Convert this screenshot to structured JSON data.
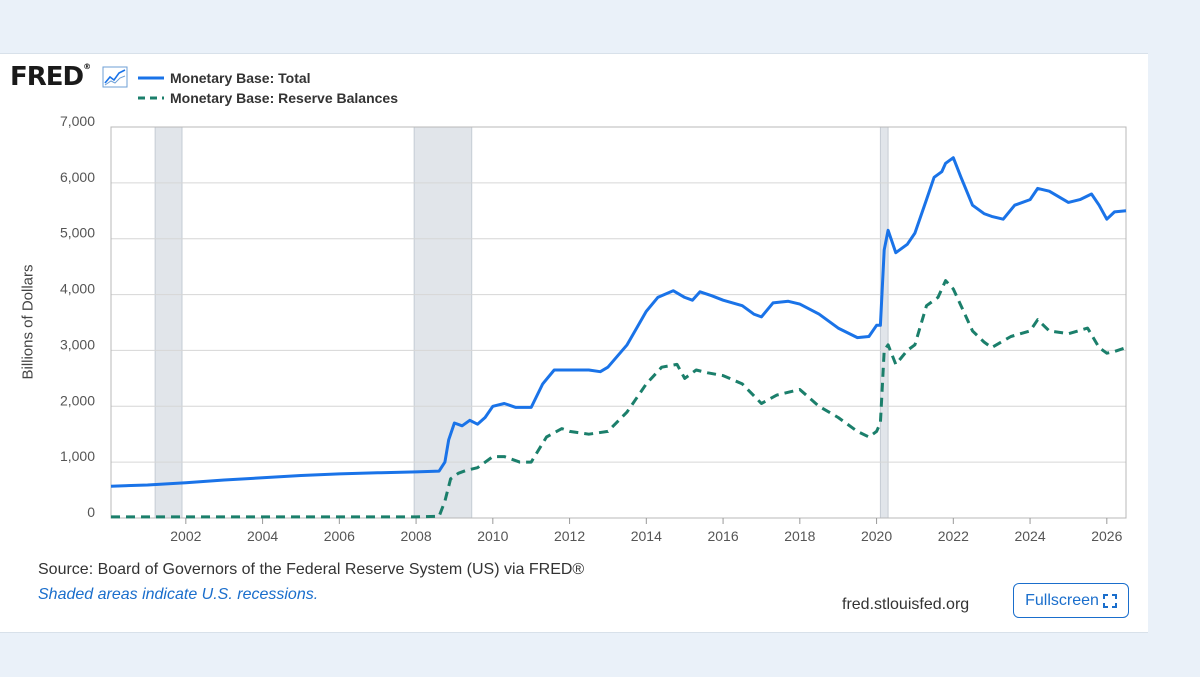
{
  "brand": {
    "logo_text": "FRED",
    "logo_mark": "®",
    "graph_icon": "chart-line-icon"
  },
  "footer": {
    "source": "Source: Board of Governors of the Federal Reserve System (US) via FRED®",
    "note": "Shaded areas indicate U.S. recessions.",
    "site": "fred.stlouisfed.org",
    "fullscreen_label": "Fullscreen",
    "fullscreen_icon": "expand-icon"
  },
  "colors": {
    "total": "#1a73e8",
    "reserves": "#1b7f6b",
    "recession": "#e1e5ea",
    "grid": "#d6d6d6"
  },
  "chart_data": {
    "type": "line",
    "title": "",
    "xlabel": "",
    "ylabel": "Billions of Dollars",
    "xlim": [
      2000.05,
      2026.5
    ],
    "ylim": [
      0,
      7000
    ],
    "grid": true,
    "legend_position": "top-left",
    "x_ticks": [
      "2002",
      "2004",
      "2006",
      "2008",
      "2010",
      "2012",
      "2014",
      "2016",
      "2018",
      "2020",
      "2022",
      "2024",
      "2026"
    ],
    "y_ticks": [
      "0",
      "1,000",
      "2,000",
      "3,000",
      "4,000",
      "5,000",
      "6,000",
      "7,000"
    ],
    "recessions": [
      [
        2001.2,
        2001.9
      ],
      [
        2007.95,
        2009.45
      ],
      [
        2020.1,
        2020.3
      ]
    ],
    "series": [
      {
        "name": "Monetary Base: Total",
        "style": "solid",
        "points": [
          [
            2000.05,
            570
          ],
          [
            2001.0,
            590
          ],
          [
            2002.0,
            630
          ],
          [
            2003.0,
            680
          ],
          [
            2004.0,
            720
          ],
          [
            2005.0,
            760
          ],
          [
            2006.0,
            790
          ],
          [
            2007.0,
            810
          ],
          [
            2008.0,
            825
          ],
          [
            2008.6,
            840
          ],
          [
            2008.75,
            1000
          ],
          [
            2008.85,
            1400
          ],
          [
            2009.0,
            1700
          ],
          [
            2009.2,
            1650
          ],
          [
            2009.4,
            1750
          ],
          [
            2009.6,
            1680
          ],
          [
            2009.8,
            1800
          ],
          [
            2010.0,
            2000
          ],
          [
            2010.3,
            2050
          ],
          [
            2010.6,
            1980
          ],
          [
            2011.0,
            1980
          ],
          [
            2011.3,
            2400
          ],
          [
            2011.6,
            2650
          ],
          [
            2012.0,
            2650
          ],
          [
            2012.5,
            2650
          ],
          [
            2012.8,
            2620
          ],
          [
            2013.0,
            2700
          ],
          [
            2013.5,
            3100
          ],
          [
            2014.0,
            3700
          ],
          [
            2014.3,
            3950
          ],
          [
            2014.7,
            4070
          ],
          [
            2015.0,
            3950
          ],
          [
            2015.2,
            3900
          ],
          [
            2015.4,
            4050
          ],
          [
            2015.7,
            3980
          ],
          [
            2016.0,
            3900
          ],
          [
            2016.5,
            3800
          ],
          [
            2016.8,
            3650
          ],
          [
            2017.0,
            3600
          ],
          [
            2017.3,
            3850
          ],
          [
            2017.7,
            3880
          ],
          [
            2018.0,
            3830
          ],
          [
            2018.5,
            3650
          ],
          [
            2019.0,
            3400
          ],
          [
            2019.5,
            3230
          ],
          [
            2019.8,
            3250
          ],
          [
            2020.0,
            3450
          ],
          [
            2020.1,
            3450
          ],
          [
            2020.2,
            4800
          ],
          [
            2020.3,
            5150
          ],
          [
            2020.5,
            4750
          ],
          [
            2020.8,
            4900
          ],
          [
            2021.0,
            5100
          ],
          [
            2021.3,
            5700
          ],
          [
            2021.5,
            6100
          ],
          [
            2021.7,
            6200
          ],
          [
            2021.8,
            6350
          ],
          [
            2022.0,
            6450
          ],
          [
            2022.2,
            6100
          ],
          [
            2022.5,
            5600
          ],
          [
            2022.8,
            5450
          ],
          [
            2023.0,
            5400
          ],
          [
            2023.3,
            5350
          ],
          [
            2023.6,
            5600
          ],
          [
            2024.0,
            5700
          ],
          [
            2024.2,
            5900
          ],
          [
            2024.5,
            5850
          ],
          [
            2025.0,
            5650
          ],
          [
            2025.3,
            5700
          ],
          [
            2025.6,
            5800
          ],
          [
            2025.8,
            5600
          ],
          [
            2026.0,
            5350
          ],
          [
            2026.2,
            5480
          ],
          [
            2026.5,
            5500
          ]
        ]
      },
      {
        "name": "Monetary Base: Reserve Balances",
        "style": "dashed",
        "points": [
          [
            2000.05,
            20
          ],
          [
            2002.0,
            20
          ],
          [
            2004.0,
            20
          ],
          [
            2006.0,
            20
          ],
          [
            2008.0,
            20
          ],
          [
            2008.6,
            30
          ],
          [
            2008.75,
            300
          ],
          [
            2008.9,
            700
          ],
          [
            2009.1,
            800
          ],
          [
            2009.3,
            850
          ],
          [
            2009.6,
            900
          ],
          [
            2010.0,
            1100
          ],
          [
            2010.3,
            1100
          ],
          [
            2010.7,
            1000
          ],
          [
            2011.0,
            1000
          ],
          [
            2011.4,
            1450
          ],
          [
            2011.8,
            1600
          ],
          [
            2012.0,
            1550
          ],
          [
            2012.5,
            1500
          ],
          [
            2013.0,
            1550
          ],
          [
            2013.5,
            1900
          ],
          [
            2014.0,
            2400
          ],
          [
            2014.4,
            2700
          ],
          [
            2014.8,
            2750
          ],
          [
            2015.0,
            2500
          ],
          [
            2015.3,
            2650
          ],
          [
            2015.6,
            2600
          ],
          [
            2016.0,
            2550
          ],
          [
            2016.5,
            2400
          ],
          [
            2017.0,
            2050
          ],
          [
            2017.4,
            2200
          ],
          [
            2018.0,
            2300
          ],
          [
            2018.5,
            2000
          ],
          [
            2019.0,
            1800
          ],
          [
            2019.5,
            1550
          ],
          [
            2019.8,
            1450
          ],
          [
            2020.0,
            1550
          ],
          [
            2020.1,
            1700
          ],
          [
            2020.2,
            3000
          ],
          [
            2020.3,
            3100
          ],
          [
            2020.5,
            2750
          ],
          [
            2020.8,
            3000
          ],
          [
            2021.0,
            3100
          ],
          [
            2021.3,
            3800
          ],
          [
            2021.6,
            3950
          ],
          [
            2021.8,
            4250
          ],
          [
            2022.0,
            4100
          ],
          [
            2022.2,
            3800
          ],
          [
            2022.5,
            3350
          ],
          [
            2022.8,
            3150
          ],
          [
            2023.0,
            3050
          ],
          [
            2023.5,
            3250
          ],
          [
            2024.0,
            3350
          ],
          [
            2024.2,
            3550
          ],
          [
            2024.5,
            3350
          ],
          [
            2025.0,
            3300
          ],
          [
            2025.5,
            3400
          ],
          [
            2025.8,
            3050
          ],
          [
            2026.0,
            2950
          ],
          [
            2026.2,
            2980
          ],
          [
            2026.5,
            3050
          ]
        ]
      }
    ]
  }
}
